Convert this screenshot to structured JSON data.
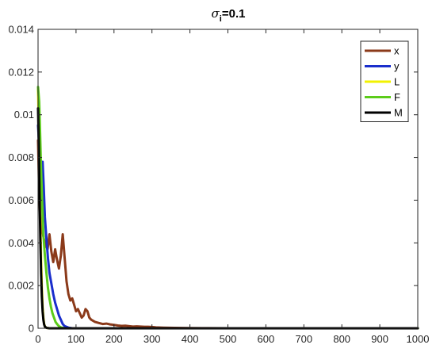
{
  "chart_data": {
    "type": "line",
    "title": "σi=0.1",
    "title_parts": {
      "sigma": "σ",
      "subscript": "i",
      "rest": "=0.1"
    },
    "xlabel": "",
    "ylabel": "",
    "xlim": [
      0,
      1000
    ],
    "ylim": [
      0,
      0.014
    ],
    "xticks": [
      0,
      100,
      200,
      300,
      400,
      500,
      600,
      700,
      800,
      900,
      1000
    ],
    "yticks": [
      0,
      0.002,
      0.004,
      0.006,
      0.008,
      0.01,
      0.012,
      0.014
    ],
    "xtick_labels": [
      "0",
      "100",
      "200",
      "300",
      "400",
      "500",
      "600",
      "700",
      "800",
      "900",
      "1000"
    ],
    "ytick_labels": [
      "0",
      "0.002",
      "0.004",
      "0.006",
      "0.008",
      "0.01",
      "0.012",
      "0.014"
    ],
    "grid": false,
    "legend_position": "top-right",
    "series": [
      {
        "name": "x",
        "color": "#8B3A1A",
        "points": [
          [
            0,
            0.0088
          ],
          [
            3,
            0.0062
          ],
          [
            6,
            0.0052
          ],
          [
            10,
            0.0047
          ],
          [
            15,
            0.0042
          ],
          [
            20,
            0.0039
          ],
          [
            25,
            0.0037
          ],
          [
            30,
            0.0044
          ],
          [
            35,
            0.0036
          ],
          [
            40,
            0.0031
          ],
          [
            45,
            0.0037
          ],
          [
            50,
            0.0032
          ],
          [
            55,
            0.0028
          ],
          [
            60,
            0.0034
          ],
          [
            65,
            0.0044
          ],
          [
            70,
            0.0033
          ],
          [
            75,
            0.0022
          ],
          [
            80,
            0.0016
          ],
          [
            85,
            0.0013
          ],
          [
            90,
            0.0014
          ],
          [
            95,
            0.0011
          ],
          [
            100,
            0.0008
          ],
          [
            105,
            0.0009
          ],
          [
            110,
            0.0007
          ],
          [
            115,
            0.0005
          ],
          [
            120,
            0.0006
          ],
          [
            125,
            0.0009
          ],
          [
            130,
            0.0008
          ],
          [
            135,
            0.0005
          ],
          [
            140,
            0.0004
          ],
          [
            150,
            0.0003
          ],
          [
            160,
            0.00025
          ],
          [
            170,
            0.0002
          ],
          [
            180,
            0.00022
          ],
          [
            190,
            0.00018
          ],
          [
            200,
            0.00016
          ],
          [
            210,
            0.00013
          ],
          [
            220,
            0.00011
          ],
          [
            230,
            0.00012
          ],
          [
            240,
            0.0001
          ],
          [
            250,
            8e-05
          ],
          [
            260,
            9e-05
          ],
          [
            270,
            8e-05
          ],
          [
            280,
            7e-05
          ],
          [
            290,
            7e-05
          ],
          [
            300,
            6e-05
          ],
          [
            310,
            4e-05
          ],
          [
            330,
            3e-05
          ],
          [
            360,
            2e-05
          ],
          [
            400,
            1e-05
          ],
          [
            450,
            5e-06
          ],
          [
            500,
            0.0
          ],
          [
            1000,
            0.0
          ]
        ]
      },
      {
        "name": "y",
        "color": "#1A2ECC",
        "points": [
          [
            0,
            0.0095
          ],
          [
            3,
            0.0085
          ],
          [
            6,
            0.0062
          ],
          [
            10,
            0.0072
          ],
          [
            12,
            0.0078
          ],
          [
            15,
            0.0066
          ],
          [
            18,
            0.0052
          ],
          [
            22,
            0.0042
          ],
          [
            26,
            0.0033
          ],
          [
            30,
            0.0026
          ],
          [
            35,
            0.0021
          ],
          [
            40,
            0.0016
          ],
          [
            45,
            0.0012
          ],
          [
            50,
            0.0009
          ],
          [
            55,
            0.0006
          ],
          [
            60,
            0.0004
          ],
          [
            65,
            0.0002
          ],
          [
            70,
            0.0001
          ],
          [
            80,
            3e-05
          ],
          [
            90,
            0.0
          ],
          [
            1000,
            0.0
          ]
        ]
      },
      {
        "name": "L",
        "color": "#F2F200",
        "points": [
          [
            0,
            0.0112
          ],
          [
            2,
            0.0095
          ],
          [
            4,
            0.0072
          ],
          [
            6,
            0.005
          ],
          [
            8,
            0.0032
          ],
          [
            10,
            0.0019
          ],
          [
            12,
            0.001
          ],
          [
            14,
            0.0005
          ],
          [
            16,
            0.0002
          ],
          [
            18,
            8e-05
          ],
          [
            22,
            2e-05
          ],
          [
            30,
            0.0
          ],
          [
            1000,
            0.0
          ]
        ]
      },
      {
        "name": "F",
        "color": "#5CCC1A",
        "points": [
          [
            0,
            0.0113
          ],
          [
            3,
            0.0106
          ],
          [
            5,
            0.0094
          ],
          [
            8,
            0.0074
          ],
          [
            11,
            0.0058
          ],
          [
            14,
            0.0044
          ],
          [
            18,
            0.0034
          ],
          [
            22,
            0.0026
          ],
          [
            26,
            0.0019
          ],
          [
            30,
            0.0014
          ],
          [
            34,
            0.001
          ],
          [
            38,
            0.0007
          ],
          [
            42,
            0.0005
          ],
          [
            46,
            0.0003
          ],
          [
            50,
            0.0002
          ],
          [
            55,
            0.0001
          ],
          [
            60,
            4e-05
          ],
          [
            70,
            0.0
          ],
          [
            1000,
            0.0
          ]
        ]
      },
      {
        "name": "M",
        "color": "#000000",
        "points": [
          [
            0,
            0.0103
          ],
          [
            2,
            0.0085
          ],
          [
            4,
            0.0062
          ],
          [
            6,
            0.0042
          ],
          [
            8,
            0.0026
          ],
          [
            10,
            0.0015
          ],
          [
            12,
            0.0008
          ],
          [
            14,
            0.0004
          ],
          [
            16,
            0.00018
          ],
          [
            18,
            8e-05
          ],
          [
            22,
            2e-05
          ],
          [
            30,
            0.0
          ],
          [
            1000,
            0.0
          ]
        ]
      }
    ]
  }
}
